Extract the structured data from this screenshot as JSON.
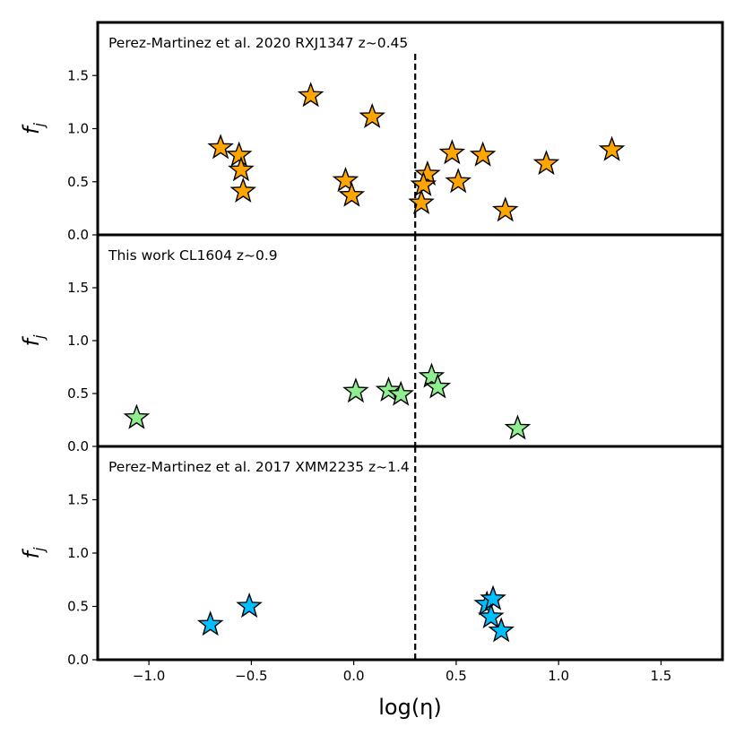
{
  "chart_data": {
    "type": "scatter",
    "xlabel": "log(η)",
    "ylabel": "f_j",
    "xlim": [
      -1.25,
      1.8
    ],
    "ylim": [
      0.0,
      2.0
    ],
    "x_ticks": [
      -1.0,
      -0.5,
      0.0,
      0.5,
      1.0,
      1.5
    ],
    "x_tick_labels": [
      "−1.0",
      "−0.5",
      "0.0",
      "0.5",
      "1.0",
      "1.5"
    ],
    "y_ticks": [
      0.0,
      0.5,
      1.0,
      1.5
    ],
    "y_tick_labels": [
      "0.0",
      "0.5",
      "1.0",
      "1.5"
    ],
    "reference_line": {
      "x": 0.3,
      "style": "dashed",
      "color": "#000000"
    },
    "marker": "star",
    "panels": [
      {
        "title": "Perez-Martinez et al. 2020 RXJ1347 z~0.45",
        "color": "#ffa500",
        "points": [
          {
            "x": -0.21,
            "y": 1.31
          },
          {
            "x": 0.09,
            "y": 1.11
          },
          {
            "x": -0.65,
            "y": 0.82
          },
          {
            "x": -0.56,
            "y": 0.75
          },
          {
            "x": -0.55,
            "y": 0.61
          },
          {
            "x": -0.54,
            "y": 0.41
          },
          {
            "x": -0.04,
            "y": 0.51
          },
          {
            "x": -0.01,
            "y": 0.37
          },
          {
            "x": 0.36,
            "y": 0.57
          },
          {
            "x": 0.34,
            "y": 0.47
          },
          {
            "x": 0.33,
            "y": 0.3
          },
          {
            "x": 0.48,
            "y": 0.77
          },
          {
            "x": 0.51,
            "y": 0.5
          },
          {
            "x": 0.63,
            "y": 0.75
          },
          {
            "x": 0.74,
            "y": 0.23
          },
          {
            "x": 0.94,
            "y": 0.67
          },
          {
            "x": 1.26,
            "y": 0.8
          }
        ]
      },
      {
        "title": "This work CL1604 z~0.9",
        "color": "#90ee90",
        "points": [
          {
            "x": -1.06,
            "y": 0.27
          },
          {
            "x": 0.01,
            "y": 0.52
          },
          {
            "x": 0.17,
            "y": 0.53
          },
          {
            "x": 0.23,
            "y": 0.49
          },
          {
            "x": 0.38,
            "y": 0.66
          },
          {
            "x": 0.41,
            "y": 0.56
          },
          {
            "x": 0.8,
            "y": 0.17
          }
        ]
      },
      {
        "title": "Perez-Martinez et al. 2017 XMM2235 z~1.4",
        "color": "#00bfff",
        "points": [
          {
            "x": -0.7,
            "y": 0.33
          },
          {
            "x": -0.51,
            "y": 0.5
          },
          {
            "x": 0.65,
            "y": 0.52
          },
          {
            "x": 0.68,
            "y": 0.57
          },
          {
            "x": 0.67,
            "y": 0.4
          },
          {
            "x": 0.72,
            "y": 0.27
          }
        ]
      }
    ]
  }
}
